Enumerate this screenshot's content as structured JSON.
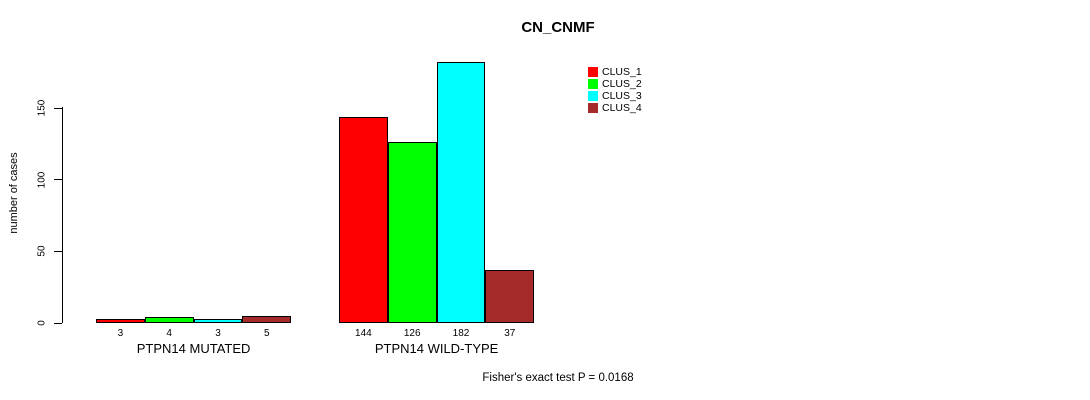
{
  "chart_data": {
    "type": "bar",
    "title": "CN_CNMF",
    "xlabel": "",
    "ylabel": "number of cases",
    "categories": [
      "PTPN14 MUTATED",
      "PTPN14 WILD-TYPE"
    ],
    "series": [
      {
        "name": "CLUS_1",
        "color": "#FF0000",
        "values": [
          3,
          144
        ]
      },
      {
        "name": "CLUS_2",
        "color": "#00FF00",
        "values": [
          4,
          126
        ]
      },
      {
        "name": "CLUS_3",
        "color": "#00FFFF",
        "values": [
          3,
          182
        ]
      },
      {
        "name": "CLUS_4",
        "color": "#A52A2A",
        "values": [
          5,
          37
        ]
      }
    ],
    "yticks": [
      0,
      50,
      100,
      150
    ],
    "ylim": [
      0,
      185
    ],
    "grid": false,
    "legend_position": "top-right",
    "bar_value_labels": true,
    "annotation": "Fisher's exact test P = 0.0168"
  }
}
